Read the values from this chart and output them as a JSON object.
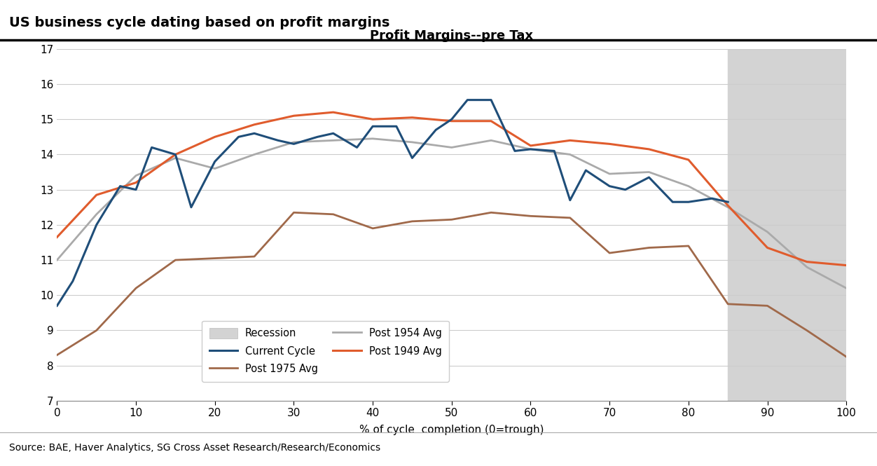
{
  "title_main": "US business cycle dating based on profit margins",
  "title_chart": "Profit Margins--pre Tax",
  "xlabel": "% of cycle  completion (0=trough)",
  "source": "Source: BAE, Haver Analytics, SG Cross Asset Research/Research/Economics",
  "ylim": [
    7,
    17
  ],
  "xlim": [
    0,
    100
  ],
  "yticks": [
    7,
    8,
    9,
    10,
    11,
    12,
    13,
    14,
    15,
    16,
    17
  ],
  "xticks": [
    0,
    10,
    20,
    30,
    40,
    50,
    60,
    70,
    80,
    90,
    100
  ],
  "recession_start": 85,
  "recession_end": 100,
  "current_cycle": {
    "x": [
      0,
      2,
      5,
      8,
      10,
      12,
      15,
      17,
      20,
      23,
      25,
      28,
      30,
      33,
      35,
      38,
      40,
      43,
      45,
      48,
      50,
      52,
      55,
      58,
      60,
      63,
      65,
      67,
      70,
      72,
      75,
      78,
      80,
      83,
      85
    ],
    "y": [
      9.7,
      10.4,
      12.0,
      13.1,
      13.0,
      14.2,
      14.0,
      12.5,
      13.8,
      14.5,
      14.6,
      14.4,
      14.3,
      14.5,
      14.6,
      14.2,
      14.8,
      14.8,
      13.9,
      14.7,
      15.0,
      15.55,
      15.55,
      14.1,
      14.15,
      14.1,
      12.7,
      13.55,
      13.1,
      13.0,
      13.35,
      12.65,
      12.65,
      12.75,
      12.65
    ],
    "color": "#1F4E79",
    "linewidth": 2.2,
    "label": "Current Cycle"
  },
  "post1975": {
    "x": [
      0,
      5,
      10,
      15,
      20,
      25,
      30,
      35,
      40,
      45,
      50,
      55,
      60,
      65,
      70,
      75,
      80,
      85,
      90,
      95,
      100
    ],
    "y": [
      8.3,
      9.0,
      10.2,
      11.0,
      11.05,
      11.1,
      12.35,
      12.3,
      11.9,
      12.1,
      12.15,
      12.35,
      12.25,
      12.2,
      11.2,
      11.35,
      11.4,
      9.75,
      9.7,
      9.0,
      8.25
    ],
    "color": "#A0694A",
    "linewidth": 2.0,
    "label": "Post 1975 Avg"
  },
  "post1954": {
    "x": [
      0,
      5,
      10,
      15,
      20,
      25,
      30,
      35,
      40,
      45,
      50,
      55,
      60,
      65,
      70,
      75,
      80,
      85,
      90,
      95,
      100
    ],
    "y": [
      11.0,
      12.3,
      13.4,
      13.9,
      13.6,
      14.0,
      14.35,
      14.4,
      14.45,
      14.35,
      14.2,
      14.4,
      14.15,
      14.0,
      13.45,
      13.5,
      13.1,
      12.5,
      11.8,
      10.8,
      10.2
    ],
    "color": "#AAAAAA",
    "linewidth": 2.0,
    "label": "Post 1954 Avg"
  },
  "post1949": {
    "x": [
      0,
      5,
      10,
      15,
      20,
      25,
      30,
      35,
      40,
      45,
      50,
      55,
      60,
      65,
      70,
      75,
      80,
      85,
      90,
      95,
      100
    ],
    "y": [
      11.65,
      12.85,
      13.2,
      14.0,
      14.5,
      14.85,
      15.1,
      15.2,
      15.0,
      15.05,
      14.95,
      14.95,
      14.25,
      14.4,
      14.3,
      14.15,
      13.85,
      12.55,
      11.35,
      10.95,
      10.85
    ],
    "color": "#E05C2D",
    "linewidth": 2.2,
    "label": "Post 1949 Avg"
  },
  "recession_color": "#D3D3D3",
  "recession_edge": "#BBBBBB",
  "background_color": "#FFFFFF",
  "grid_color": "#CCCCCC",
  "title_fontsize": 13,
  "axis_title_fontsize": 13,
  "tick_fontsize": 11,
  "xlabel_fontsize": 11,
  "source_fontsize": 10,
  "maintitle_fontsize": 14
}
